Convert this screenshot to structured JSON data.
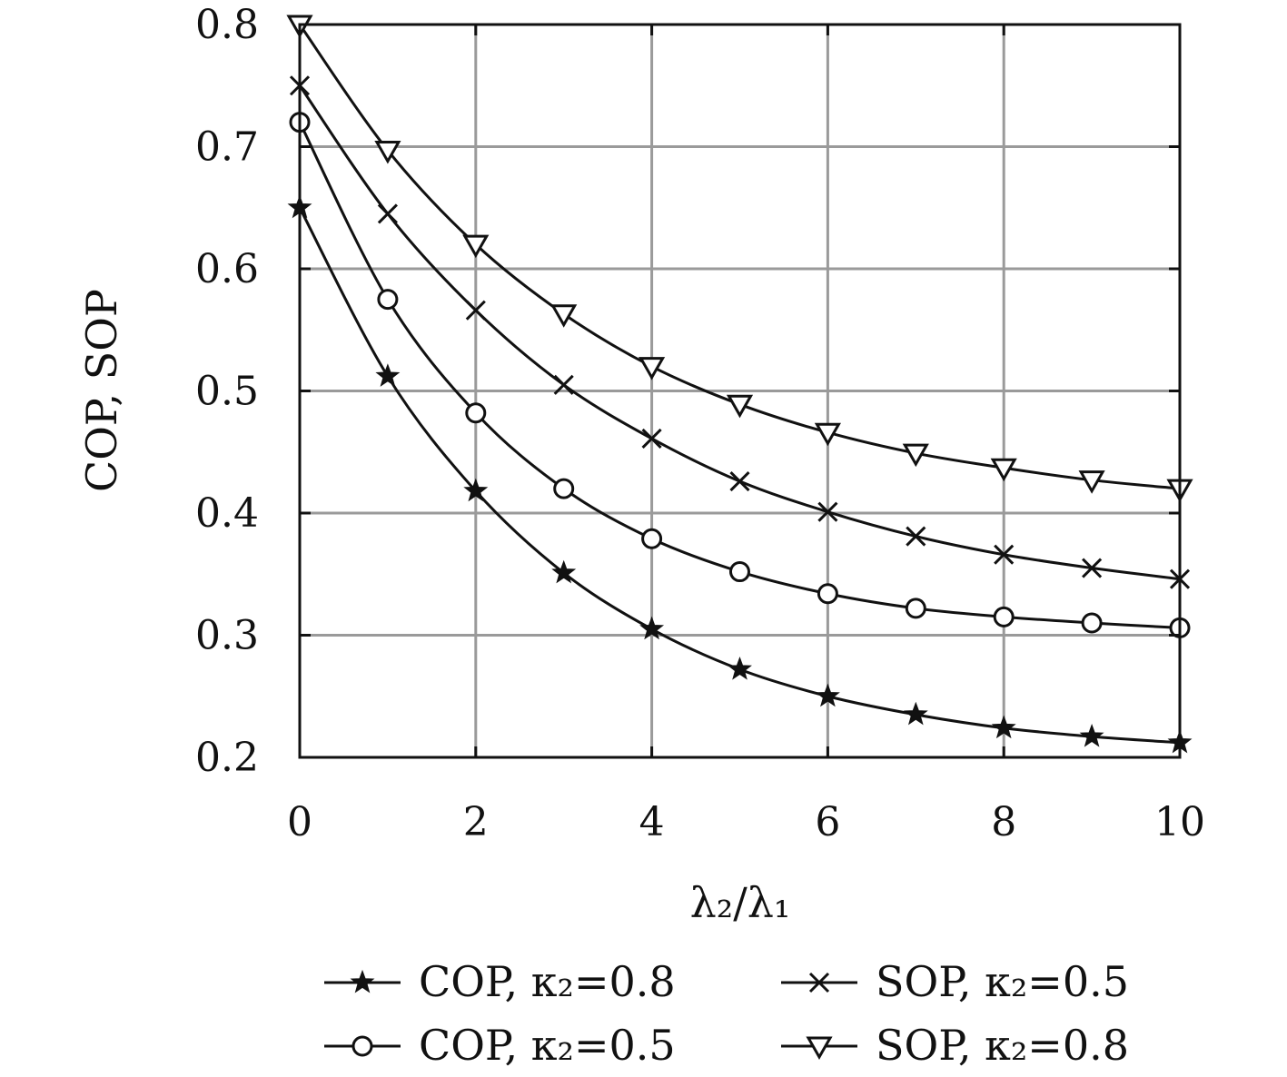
{
  "chart_data": {
    "type": "line",
    "xlabel": "λ₂/λ₁",
    "ylabel": "COP, SOP",
    "xlim": [
      0,
      10
    ],
    "ylim": [
      0.2,
      0.8
    ],
    "xticks": [
      "0",
      "2",
      "4",
      "6",
      "8",
      "10"
    ],
    "yticks": [
      "0.2",
      "0.3",
      "0.4",
      "0.5",
      "0.6",
      "0.7",
      "0.8"
    ],
    "grid": true,
    "legend_position": "bottom",
    "x": [
      0,
      1,
      2,
      3,
      4,
      5,
      6,
      7,
      8,
      9,
      10
    ],
    "series": [
      {
        "name": "COP, κ₂=0.8",
        "marker": "star",
        "values": [
          0.65,
          0.512,
          0.418,
          0.351,
          0.305,
          0.272,
          0.25,
          0.235,
          0.224,
          0.217,
          0.212
        ]
      },
      {
        "name": "COP, κ₂=0.5",
        "marker": "circle",
        "values": [
          0.72,
          0.575,
          0.482,
          0.42,
          0.379,
          0.352,
          0.334,
          0.322,
          0.315,
          0.31,
          0.306
        ]
      },
      {
        "name": "SOP, κ₂=0.5",
        "marker": "x",
        "values": [
          0.75,
          0.645,
          0.566,
          0.505,
          0.461,
          0.426,
          0.401,
          0.381,
          0.366,
          0.355,
          0.346
        ]
      },
      {
        "name": "SOP, κ₂=0.8",
        "marker": "triangle-down",
        "values": [
          0.8,
          0.697,
          0.62,
          0.563,
          0.52,
          0.489,
          0.466,
          0.449,
          0.437,
          0.427,
          0.42
        ]
      }
    ]
  }
}
